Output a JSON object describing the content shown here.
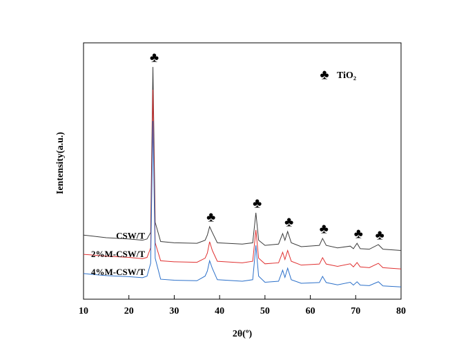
{
  "chart_data": {
    "type": "line",
    "x_label": "2θ(º)",
    "y_label": "Ientensity(a.u.)",
    "x": [
      10,
      15,
      20,
      23,
      24,
      24.8,
      25.3,
      25.8,
      27,
      30,
      35,
      36.8,
      37.3,
      37.8,
      38.4,
      39.5,
      45,
      47.3,
      48,
      48.6,
      50,
      53,
      53.9,
      54.4,
      55,
      55.8,
      58,
      62,
      62.7,
      63.5,
      66,
      68.8,
      69.5,
      70.3,
      71,
      73,
      75,
      76,
      80
    ],
    "series": [
      {
        "name": "CSW/T",
        "color": "#3a3a3a",
        "values": [
          25,
          24,
          23.5,
          23,
          23.5,
          26,
          90.6,
          30,
          22.5,
          22,
          21.8,
          23,
          25,
          28.3,
          26,
          22,
          21.5,
          22,
          33.7,
          23,
          21,
          21.5,
          25.6,
          23,
          26.4,
          22,
          20.5,
          21,
          23.7,
          21,
          20,
          20.7,
          19.7,
          21.8,
          19.7,
          19.5,
          21.3,
          19.5,
          19
        ]
      },
      {
        "name": "2%M-CSW/T",
        "color": "#e03030",
        "values": [
          17.5,
          16.8,
          16.3,
          15.8,
          16.3,
          20,
          81.7,
          22,
          15,
          14.6,
          14.4,
          16,
          18,
          22.4,
          19,
          14.8,
          14.2,
          14.8,
          27,
          16,
          13.8,
          14.2,
          18.3,
          15.5,
          19,
          14.8,
          13.3,
          13.7,
          16.2,
          13.7,
          12.8,
          13.8,
          12.6,
          14.3,
          12.6,
          12.3,
          14,
          12.3,
          11.8
        ]
      },
      {
        "name": "4%M-CSW/T",
        "color": "#2a6fc9",
        "values": [
          10,
          9.2,
          8.8,
          8.4,
          9,
          14,
          69.5,
          16,
          7.8,
          7.4,
          7.2,
          9,
          11,
          15,
          12,
          7.6,
          7,
          7.6,
          21,
          9,
          6.6,
          7,
          11.3,
          8.5,
          12.1,
          7.6,
          6.2,
          6.5,
          8.9,
          6.5,
          5.6,
          6.6,
          5.5,
          6.8,
          5.5,
          5.3,
          6.8,
          5.2,
          4.8
        ]
      }
    ],
    "peak_markers": {
      "symbol": "♣",
      "x": [
        25.3,
        37.8,
        48,
        55,
        62.7,
        70.3,
        75
      ]
    },
    "legend": {
      "symbol": "♣",
      "label": "TiO₂"
    },
    "xlim": [
      10,
      80
    ],
    "xticks": [
      10,
      20,
      30,
      40,
      50,
      60,
      70,
      80
    ],
    "ylim": [
      0,
      100
    ]
  }
}
